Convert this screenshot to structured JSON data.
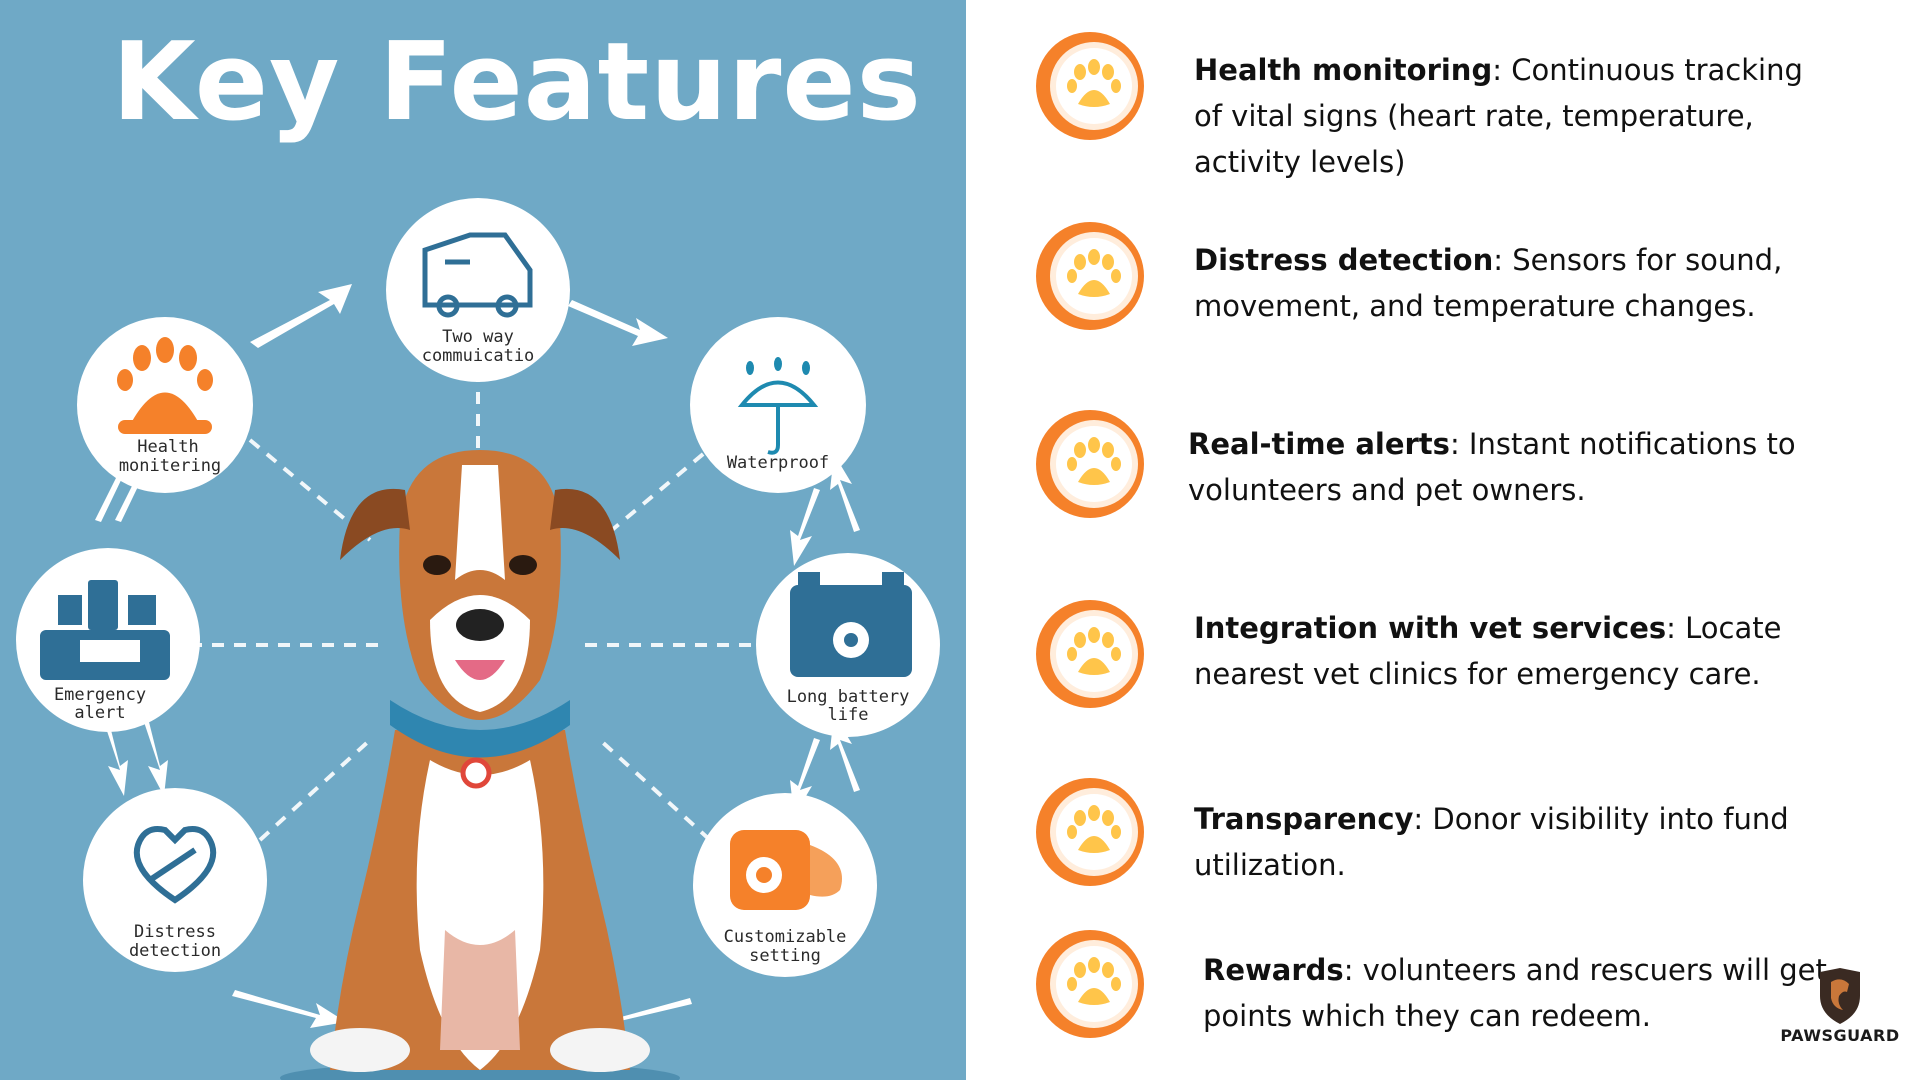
{
  "title": "Key Features",
  "illustration": {
    "nodes": [
      {
        "id": "two-way",
        "label_lines": [
          "Two way",
          "commuicatio"
        ],
        "icon": "car-icon"
      },
      {
        "id": "waterproof",
        "label_lines": [
          "Waterproof"
        ],
        "icon": "umbrella-icon"
      },
      {
        "id": "battery",
        "label_lines": [
          "Long battery",
          "life"
        ],
        "icon": "battery-icon"
      },
      {
        "id": "custom",
        "label_lines": [
          "Customizable",
          "setting"
        ],
        "icon": "settings-device-icon"
      },
      {
        "id": "distress",
        "label_lines": [
          "Distress",
          "detection"
        ],
        "icon": "heart-icon"
      },
      {
        "id": "emergency",
        "label_lines": [
          "Emergency",
          "alert"
        ],
        "icon": "devices-icon"
      },
      {
        "id": "health",
        "label_lines": [
          "Health",
          "monitering"
        ],
        "icon": "paw-icon"
      }
    ]
  },
  "features": [
    {
      "name": "Health monitoring",
      "separator": ":",
      "description": " Continuous tracking of vital signs (heart rate, temperature, activity levels)",
      "icon": "paw-icon"
    },
    {
      "name": "Distress detection",
      "separator": ":",
      "description": " Sensors for sound, movement, and temperature changes.",
      "icon": "paw-icon"
    },
    {
      "name": "Real-time alerts",
      "separator": ":",
      "description": " Instant notifications to volunteers and pet owners.",
      "icon": "paw-icon"
    },
    {
      "name": "Integration with vet services",
      "separator": ":",
      "description": " Locate nearest vet clinics for emergency care.",
      "icon": "paw-icon"
    },
    {
      "name": "Transparency",
      "separator": ":",
      "description": " Donor visibility into fund utilization.",
      "icon": "paw-icon"
    },
    {
      "name": "Rewards",
      "separator": ":",
      "description": " volunteers and rescuers will get points which they can redeem.",
      "icon": "paw-icon"
    }
  ],
  "brand": {
    "name": "PAWSGUARD",
    "icon": "dog-shield-icon"
  },
  "colors": {
    "panel_blue": "#6fa9c6",
    "accent_orange": "#f5812a",
    "paw_yellow": "#ffc54a",
    "icon_blue": "#2f6f96",
    "dog_brown": "#c9773a"
  }
}
